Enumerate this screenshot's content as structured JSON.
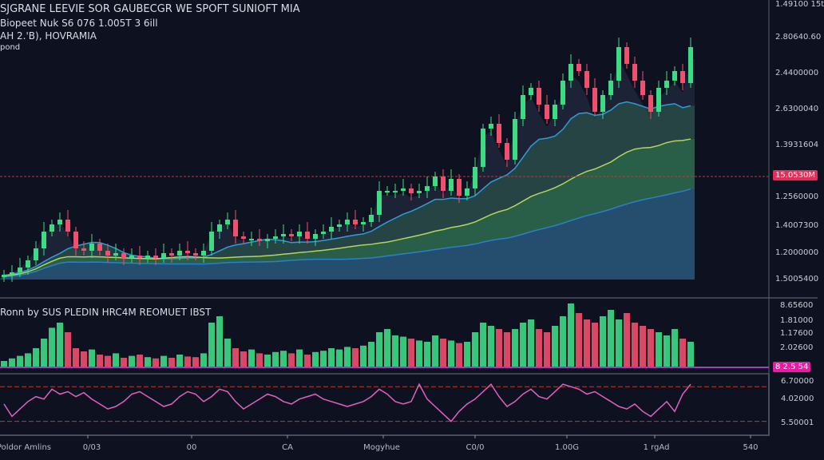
{
  "header": {
    "title": "SJGRANE LEEVIE SOR GAUBECGR WE SPOFT SUNIOFT MIA",
    "line2": "Biopeet Nuk S6 076 1.005T 3 6ill",
    "line3": "AH 2.'B), HOVRAMIA",
    "line4": "pond"
  },
  "volume_pane_label": "Ronn by SUS PLEDIN HRC4M REOMUET IBST",
  "colors": {
    "background": "#0e1220",
    "up": "#3ddc84",
    "down": "#f0506e",
    "ma_fast": "#2a9fd6",
    "ma_mid": "#b5d65a",
    "ma_slow": "#2a7fd0",
    "rsi": "#e060c0",
    "level_line": "#c0392b",
    "badge": "#e0305a",
    "badge_volume": "#e020a0"
  },
  "price_axis": [
    "1.49100 15t",
    "2.80640.60",
    "2.4400000",
    "2.6300040",
    "1.3931604",
    "1.2560000",
    "1.4007300",
    "1.2000000",
    "1.5005400"
  ],
  "price_badge": "15.0530M",
  "volume_axis": [
    "8.65600",
    "1.81000",
    "1.17600",
    "2.02600"
  ],
  "volume_badge": "8 2.5 54",
  "rsi_axis": [
    "6.70000",
    "4.02000",
    "5.50001"
  ],
  "time_axis": [
    "Poldor Amlins",
    "0/03",
    "00",
    "CA",
    "Mogyhue",
    "C0/0",
    "1.00G",
    "1 rgAd",
    "540"
  ],
  "chart_data": [
    {
      "type": "candlestick",
      "close": [
        2,
        3,
        5,
        8,
        13,
        20,
        23,
        25,
        20,
        13,
        12,
        15,
        12,
        10,
        11,
        9,
        10,
        9,
        10,
        9,
        11,
        10,
        12,
        11,
        10,
        12,
        20,
        23,
        25,
        18,
        17,
        17,
        16,
        17,
        18,
        19,
        18,
        20,
        17,
        19,
        20,
        22,
        23,
        25,
        23,
        24,
        27,
        37,
        37,
        37,
        38,
        36,
        37,
        39,
        43,
        37,
        42,
        35,
        38,
        47,
        63,
        65,
        57,
        50,
        67,
        77,
        80,
        73,
        67,
        73,
        83,
        90,
        87,
        80,
        70,
        77,
        83,
        97,
        90,
        83,
        77,
        70,
        80,
        83,
        87,
        82,
        97
      ],
      "overlays": [
        "moving-average fast",
        "moving-average mid",
        "moving-average slow"
      ],
      "horizontal_level": 43,
      "grid": false
    },
    {
      "type": "bar",
      "title": "Ronn by SUS PLEDIN HRC4M REOMUET IBST",
      "values": [
        10,
        14,
        18,
        22,
        30,
        45,
        62,
        70,
        55,
        30,
        25,
        28,
        20,
        18,
        22,
        15,
        18,
        20,
        16,
        14,
        18,
        15,
        20,
        17,
        16,
        22,
        70,
        80,
        45,
        30,
        25,
        28,
        22,
        20,
        24,
        26,
        22,
        28,
        20,
        24,
        26,
        30,
        28,
        32,
        30,
        34,
        40,
        55,
        60,
        50,
        48,
        45,
        42,
        40,
        50,
        45,
        42,
        38,
        40,
        55,
        70,
        65,
        60,
        55,
        60,
        70,
        75,
        60,
        55,
        65,
        80,
        100,
        85,
        75,
        70,
        80,
        90,
        75,
        85,
        70,
        65,
        60,
        55,
        50,
        60,
        45,
        40
      ]
    },
    {
      "type": "line",
      "values": [
        55,
        30,
        45,
        60,
        70,
        65,
        85,
        75,
        80,
        70,
        78,
        65,
        55,
        45,
        50,
        60,
        75,
        80,
        70,
        60,
        50,
        55,
        70,
        80,
        75,
        60,
        70,
        85,
        80,
        60,
        45,
        55,
        65,
        75,
        70,
        60,
        55,
        65,
        70,
        75,
        65,
        60,
        55,
        50,
        55,
        60,
        70,
        85,
        75,
        60,
        55,
        60,
        95,
        65,
        50,
        35,
        20,
        40,
        55,
        65,
        80,
        95,
        70,
        50,
        60,
        75,
        85,
        70,
        65,
        80,
        95,
        90,
        85,
        75,
        80,
        70,
        60,
        50,
        45,
        55,
        40,
        30,
        45,
        60,
        40,
        75,
        95
      ],
      "levels": [
        90,
        20
      ]
    }
  ]
}
